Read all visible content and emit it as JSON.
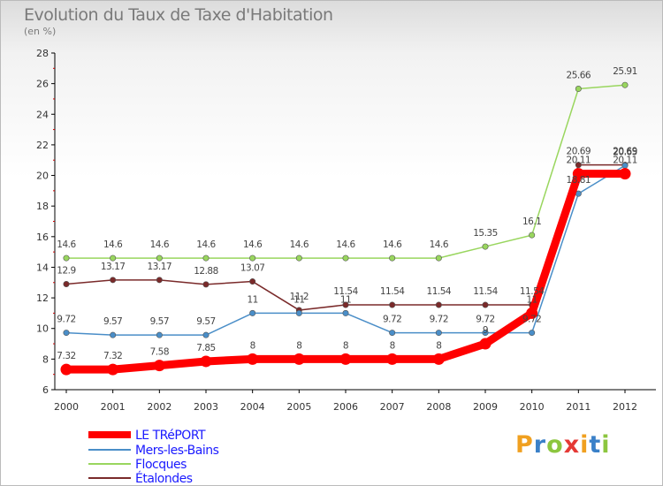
{
  "title": "Evolution du Taux de Taxe d'Habitation",
  "subtitle": "(en %)",
  "logo": {
    "letters": [
      "P",
      "r",
      "o",
      "x",
      "i",
      "t",
      "i"
    ],
    "colors": [
      "#f0a020",
      "#3a80c8",
      "#8cc63f",
      "#e53935",
      "#f0a020",
      "#3a80c8",
      "#8cc63f"
    ]
  },
  "chart_data": {
    "type": "line",
    "x": [
      "2000",
      "2001",
      "2002",
      "2003",
      "2004",
      "2005",
      "2006",
      "2007",
      "2008",
      "2009",
      "2010",
      "2011",
      "2012"
    ],
    "ylim": [
      6,
      28
    ],
    "yticks": [
      "6",
      "8",
      "10",
      "12",
      "14",
      "16",
      "18",
      "20",
      "22",
      "24",
      "26",
      "28"
    ],
    "grid": false,
    "legend": "bottom-left",
    "series": [
      {
        "name": "LE TRéPORT",
        "color": "#ff0000",
        "values": [
          7.32,
          7.32,
          7.58,
          7.85,
          8,
          8,
          8,
          8,
          8,
          9,
          11,
          20.11,
          20.11
        ],
        "labels": [
          "7.32",
          "7.32",
          "7.58",
          "7.85",
          "8",
          "8",
          "8",
          "8",
          "8",
          "9",
          "11",
          "20.11",
          "20.11"
        ]
      },
      {
        "name": "Mers-les-Bains",
        "color": "#4a8ec8",
        "values": [
          9.72,
          9.57,
          9.57,
          9.57,
          11,
          11,
          11,
          9.72,
          9.72,
          9.72,
          9.72,
          18.81,
          20.65
        ],
        "labels": [
          "9.72",
          "9.57",
          "9.57",
          "9.57",
          "11",
          "11",
          "11",
          "9.72",
          "9.72",
          "9.72",
          "9.72",
          "18.81",
          "20.65"
        ]
      },
      {
        "name": "Flocques",
        "color": "#99d65e",
        "values": [
          14.6,
          14.6,
          14.6,
          14.6,
          14.6,
          14.6,
          14.6,
          14.6,
          14.6,
          15.35,
          16.1,
          25.66,
          25.91
        ],
        "labels": [
          "14.6",
          "14.6",
          "14.6",
          "14.6",
          "14.6",
          "14.6",
          "14.6",
          "14.6",
          "14.6",
          "15.35",
          "16.1",
          "25.66",
          "25.91"
        ]
      },
      {
        "name": "Étalondes",
        "color": "#7a2a2a",
        "values": [
          12.9,
          13.17,
          13.17,
          12.88,
          13.07,
          11.2,
          11.54,
          11.54,
          11.54,
          11.54,
          11.54,
          20.69,
          20.69
        ],
        "labels": [
          "12.9",
          "13.17",
          "13.17",
          "12.88",
          "13.07",
          "11.2",
          "11.54",
          "11.54",
          "11.54",
          "11.54",
          "11.54",
          "20.69",
          "20.69"
        ]
      }
    ]
  }
}
